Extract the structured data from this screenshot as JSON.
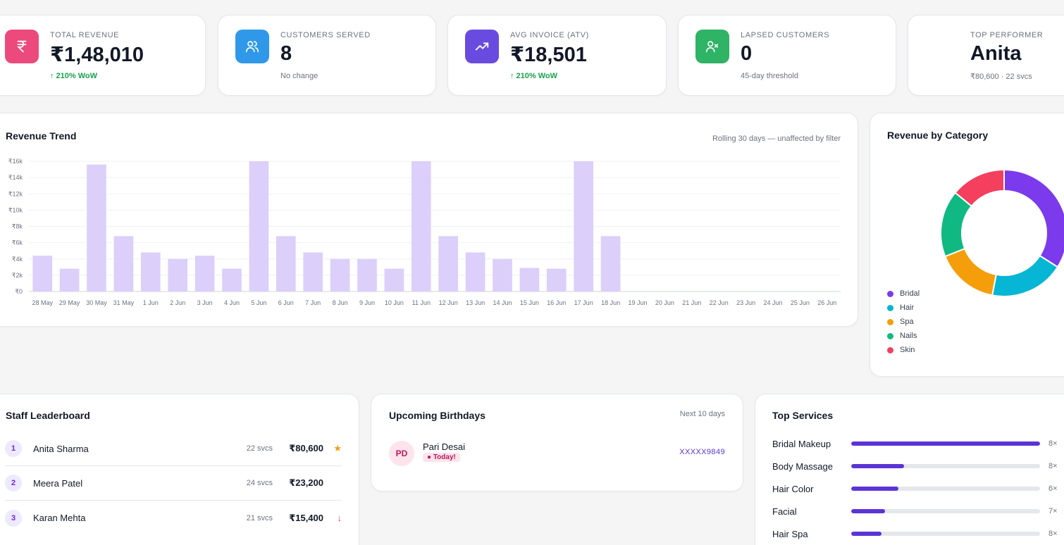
{
  "kpis": [
    {
      "label": "TOTAL REVENUE",
      "value": "₹1,48,010",
      "sub": "↑ 210% WoW",
      "icon": "rupee-icon",
      "color": "#ec4a7c"
    },
    {
      "label": "CUSTOMERS SERVED",
      "value": "8",
      "sub": "No change",
      "icon": "users-icon",
      "color": "#2f98e8"
    },
    {
      "label": "AVG INVOICE (ATV)",
      "value": "₹18,501",
      "sub": "↑ 210% WoW",
      "icon": "trending-up-icon",
      "color": "#6a4be0"
    },
    {
      "label": "LAPSED CUSTOMERS",
      "value": "0",
      "sub": "45-day threshold",
      "icon": "user-x-icon",
      "color": "#2fb365"
    },
    {
      "label": "TOP PERFORMER",
      "value": "Anita",
      "sub": "₹80,600 · 22 svcs"
    }
  ],
  "revenue_trend": {
    "title": "Revenue Trend",
    "note": "Rolling 30 days — unaffected by filter"
  },
  "chart_data": {
    "type": "bar",
    "title": "Revenue Trend",
    "categories": [
      "28 May",
      "29 May",
      "30 May",
      "31 May",
      "1 Jun",
      "2 Jun",
      "3 Jun",
      "4 Jun",
      "5 Jun",
      "6 Jun",
      "7 Jun",
      "8 Jun",
      "9 Jun",
      "10 Jun",
      "11 Jun",
      "12 Jun",
      "13 Jun",
      "14 Jun",
      "15 Jun",
      "16 Jun",
      "17 Jun",
      "18 Jun",
      "19 Jun",
      "20 Jun",
      "21 Jun",
      "22 Jun",
      "23 Jun",
      "24 Jun",
      "25 Jun",
      "26 Jun"
    ],
    "values": [
      4400,
      2800,
      15600,
      6800,
      4800,
      4000,
      4400,
      2800,
      16000,
      6800,
      4800,
      4000,
      4000,
      2800,
      16000,
      6800,
      4800,
      4000,
      2900,
      2800,
      16000,
      6800,
      0,
      0,
      0,
      0,
      0,
      0,
      0,
      0
    ],
    "ylim": [
      0,
      16000
    ],
    "yticks": [
      0,
      2000,
      4000,
      6000,
      8000,
      10000,
      12000,
      14000,
      16000
    ],
    "ytick_labels": [
      "₹0",
      "₹2k",
      "₹4k",
      "₹6k",
      "₹8k",
      "₹10k",
      "₹12k",
      "₹14k",
      "₹16k"
    ],
    "grid": true,
    "bar_color": "#dccffa"
  },
  "category_chart": {
    "title": "Revenue by Category",
    "type": "pie",
    "slices": [
      {
        "name": "Bridal",
        "value": 34,
        "color": "#7c3aed"
      },
      {
        "name": "Hair",
        "value": 19,
        "color": "#06b6d4"
      },
      {
        "name": "Spa",
        "value": 16,
        "color": "#f59e0b"
      },
      {
        "name": "Nails",
        "value": 17,
        "color": "#10b981"
      },
      {
        "name": "Skin",
        "value": 14,
        "color": "#f43f5e"
      }
    ]
  },
  "leaderboard": {
    "title": "Staff Leaderboard",
    "rows": [
      {
        "rank": "1",
        "name": "Anita Sharma",
        "svcs": "22 svcs",
        "revenue": "₹80,600",
        "mark": "★",
        "mark_color": "#f59e0b"
      },
      {
        "rank": "2",
        "name": "Meera Patel",
        "svcs": "24 svcs",
        "revenue": "₹23,200",
        "mark": "",
        "mark_color": "#000000"
      },
      {
        "rank": "3",
        "name": "Karan Mehta",
        "svcs": "21 svcs",
        "revenue": "₹15,400",
        "mark": "↓",
        "mark_color": "#ef4444"
      }
    ]
  },
  "birthdays": {
    "title": "Upcoming Birthdays",
    "note": "Next 10 days",
    "items": [
      {
        "initials": "PD",
        "name": "Pari Desai",
        "badge": "● Today!",
        "phone": "XXXXX9849"
      }
    ]
  },
  "top_services": {
    "title": "Top Services",
    "items": [
      {
        "name": "Bridal Makeup",
        "share": 1.0,
        "count": "8×"
      },
      {
        "name": "Body Massage",
        "share": 0.28,
        "count": "8×"
      },
      {
        "name": "Hair Color",
        "share": 0.25,
        "count": "6×"
      },
      {
        "name": "Facial",
        "share": 0.18,
        "count": "7×"
      },
      {
        "name": "Hair Spa",
        "share": 0.16,
        "count": "8×"
      }
    ]
  }
}
